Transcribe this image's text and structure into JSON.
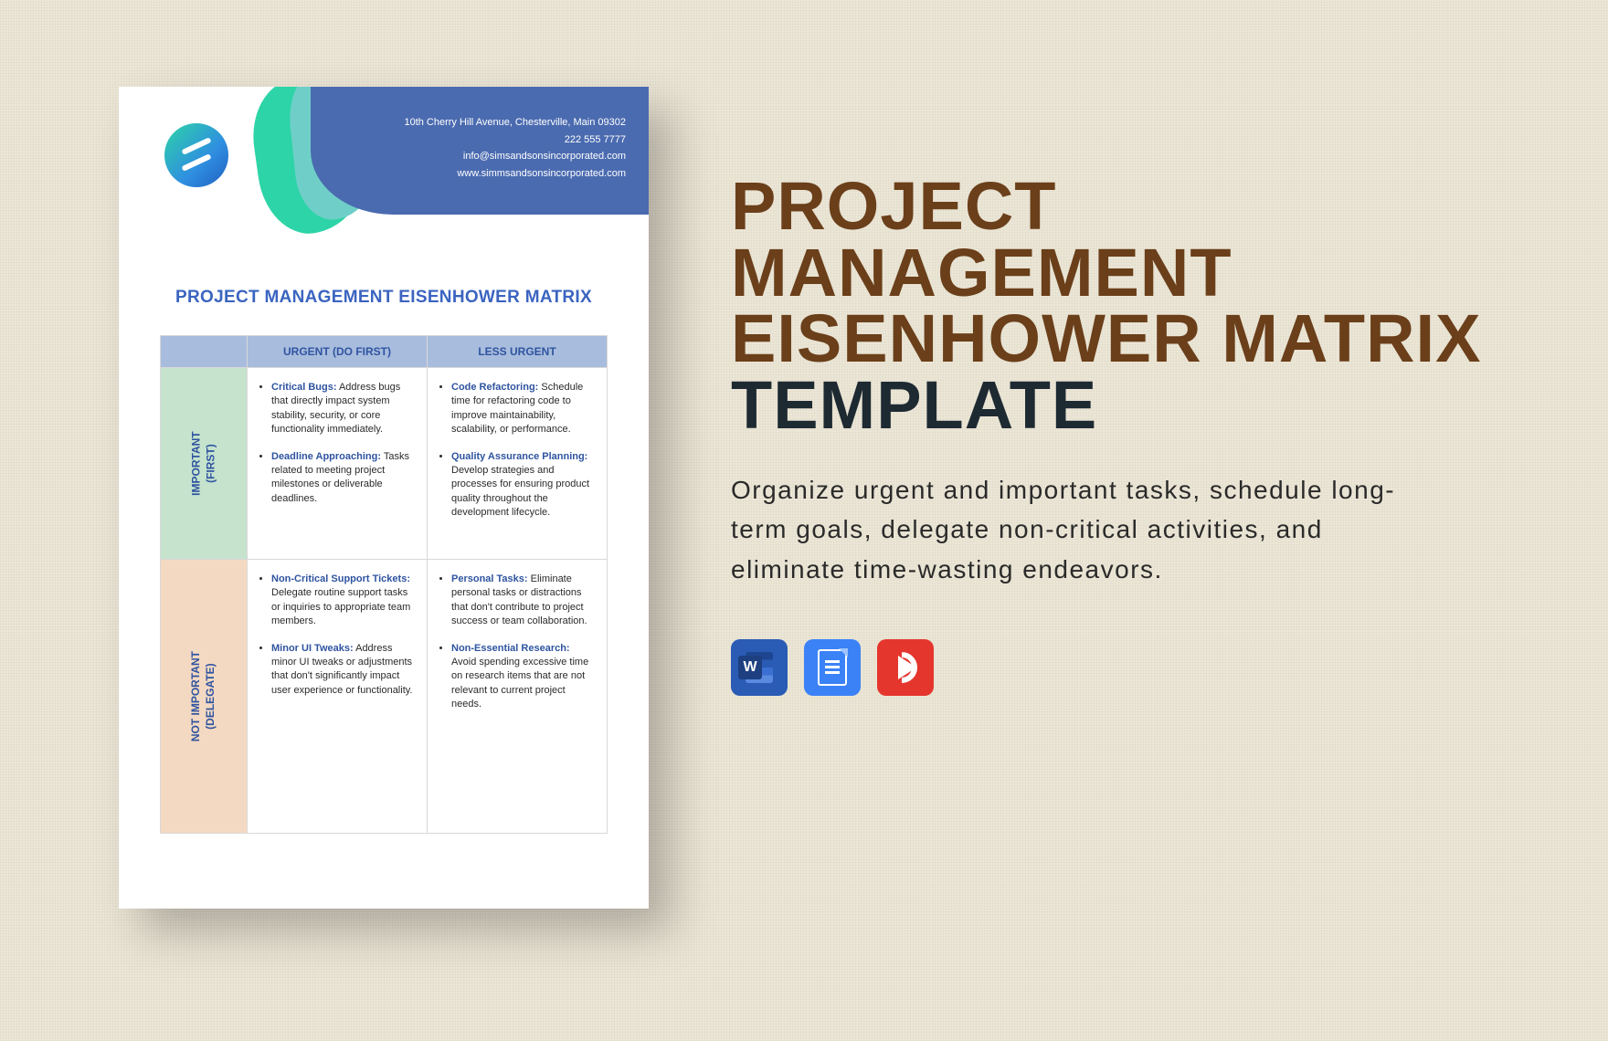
{
  "page_bg": "#ece6d6",
  "document": {
    "contact": {
      "address": "10th Cherry Hill Avenue, Chesterville, Main 09302",
      "phone": "222 555 7777",
      "email": "info@simsandsonsincorporated.com",
      "website": "www.simmsandsonsincorporated.com"
    },
    "header_bg": "#4b6bb0",
    "wave_colors": [
      "#2dd4a7",
      "#6fcfc8"
    ],
    "title": "PROJECT MANAGEMENT EISENHOWER MATRIX",
    "title_color": "#3b64c0",
    "matrix": {
      "header_bg": "#a8bcdd",
      "row1_bg": "#c5e3cd",
      "row2_bg": "#f4d9c2",
      "label_color": "#2f54a0",
      "border_color": "#d8d8d8",
      "columns": [
        "URGENT (DO FIRST)",
        "LESS URGENT"
      ],
      "rows": [
        {
          "label_line1": "IMPORTANT",
          "label_line2": "(FIRST)",
          "cells": [
            [
              {
                "title": "Critical Bugs:",
                "text": " Address bugs that directly impact system stability, security, or core functionality immediately."
              },
              {
                "title": "Deadline Approaching:",
                "text": " Tasks related to meeting project milestones or deliverable deadlines."
              }
            ],
            [
              {
                "title": "Code Refactoring:",
                "text": " Schedule time for refactoring code to improve maintainability, scalability, or performance."
              },
              {
                "title": "Quality Assurance Planning:",
                "text": " Develop strategies and processes for ensuring product quality throughout the development lifecycle."
              }
            ]
          ]
        },
        {
          "label_line1": "NOT IMPORTANT",
          "label_line2": "(DELEGATE)",
          "cells": [
            [
              {
                "title": "Non-Critical Support Tickets:",
                "text": " Delegate routine support tasks or inquiries to appropriate team members."
              },
              {
                "title": "Minor UI Tweaks:",
                "text": " Address minor UI tweaks or adjustments that don't significantly impact user experience or functionality."
              }
            ],
            [
              {
                "title": "Personal Tasks:",
                "text": " Eliminate personal tasks or distractions that don't contribute to project success or team collaboration."
              },
              {
                "title": "Non-Essential Research:",
                "text": " Avoid spending excessive time on research items that are not relevant to current project needs."
              }
            ]
          ]
        }
      ]
    }
  },
  "promo": {
    "title_main": "PROJECT MANAGEMENT EISENHOWER MATRIX",
    "title_suffix": " TEMPLATE",
    "title_main_color": "#6a3f1a",
    "title_suffix_color": "#1e2a32",
    "title_fontsize": 74,
    "description": "Organize urgent and important tasks, schedule long-term goals, delegate non-critical activities, and eliminate time-wasting endeavors.",
    "formats": [
      {
        "name": "word-icon",
        "bg": "#2a5bb5"
      },
      {
        "name": "google-docs-icon",
        "bg": "#3b82f6"
      },
      {
        "name": "pdf-icon",
        "bg": "#e5362e"
      }
    ]
  }
}
